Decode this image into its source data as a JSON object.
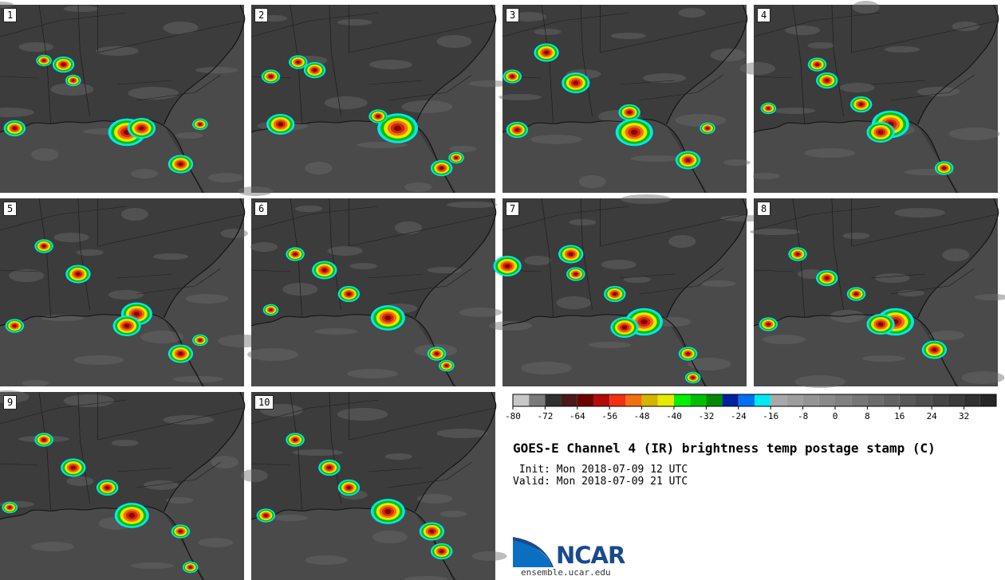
{
  "panels": [
    {
      "label": "1"
    },
    {
      "label": "2"
    },
    {
      "label": "3"
    },
    {
      "label": "4"
    },
    {
      "label": "5"
    },
    {
      "label": "6"
    },
    {
      "label": "7"
    },
    {
      "label": "8"
    },
    {
      "label": "9"
    },
    {
      "label": "10"
    }
  ],
  "colorbar": {
    "colors": [
      "#c8c8c8",
      "#7a7a7a",
      "#303030",
      "#4a1a1a",
      "#6e0000",
      "#b40a0a",
      "#f03010",
      "#f07010",
      "#d4b400",
      "#e8e800",
      "#00f000",
      "#00c000",
      "#008a00",
      "#0020a0",
      "#0070f0",
      "#00e8f0",
      "#a8a8a8",
      "#9e9e9e",
      "#949494",
      "#8a8a8a",
      "#808080",
      "#767676",
      "#6c6c6c",
      "#626262",
      "#585858",
      "#4e4e4e",
      "#444444",
      "#3a3a3a",
      "#303030",
      "#262626"
    ],
    "tick_labels": [
      "-80",
      "-72",
      "-64",
      "-56",
      "-48",
      "-40",
      "-32",
      "-24",
      "-16",
      "-8",
      "0",
      "8",
      "16",
      "24",
      "32"
    ]
  },
  "title": "GOES-E Channel 4 (IR) brightness temp postage stamp (C)",
  "init": "Init: Mon 2018-07-09 12 UTC",
  "valid": "Valid: Mon 2018-07-09 21 UTC",
  "logo": {
    "name": "NCAR",
    "url": "ensemble.ucar.edu"
  }
}
